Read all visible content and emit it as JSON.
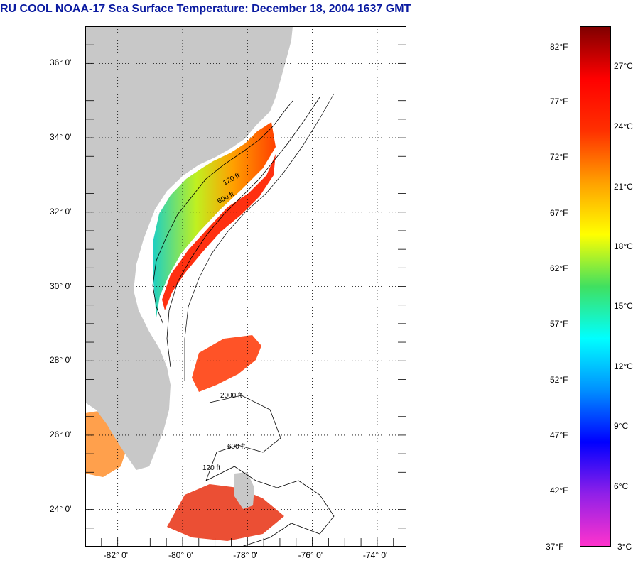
{
  "title": "RU COOL  NOAA-17  Sea Surface Temperature:  December 18, 2004 1637 GMT",
  "map": {
    "lon_range": [
      -83,
      -73.1
    ],
    "lat_range": [
      23,
      37
    ],
    "lat_ticks": [
      {
        "value": 36,
        "label": "36° 0'"
      },
      {
        "value": 34,
        "label": "34° 0'"
      },
      {
        "value": 32,
        "label": "32° 0'"
      },
      {
        "value": 30,
        "label": "30° 0'"
      },
      {
        "value": 28,
        "label": "28° 0'"
      },
      {
        "value": 26,
        "label": "26° 0'"
      },
      {
        "value": 24,
        "label": "24° 0'"
      }
    ],
    "lon_ticks": [
      {
        "value": -82,
        "label": "-82° 0'"
      },
      {
        "value": -80,
        "label": "-80° 0'"
      },
      {
        "value": -78,
        "label": "-78° 0'"
      },
      {
        "value": -76,
        "label": "-76° 0'"
      },
      {
        "value": -74,
        "label": "-74° 0'"
      }
    ],
    "contour_labels": [
      "120 ft",
      "600 ft",
      "2000 ft"
    ],
    "colors": {
      "land": "#c8c8c8",
      "ocean_no_data": "#ffffff",
      "grid": "#000000"
    }
  },
  "colorbar": {
    "fahrenheit": [
      "82°F",
      "77°F",
      "72°F",
      "67°F",
      "62°F",
      "57°F",
      "52°F",
      "47°F",
      "42°F",
      "37°F"
    ],
    "celsius": [
      "27°C",
      "24°C",
      "21°C",
      "18°C",
      "15°C",
      "12°C",
      "9°C",
      "6°C",
      "3°C"
    ],
    "colors": [
      "#ff33cc",
      "#9020e8",
      "#0000ff",
      "#0090ff",
      "#00ffff",
      "#40e060",
      "#ffff00",
      "#ffa000",
      "#ff3000",
      "#ff0000",
      "#800000"
    ]
  }
}
